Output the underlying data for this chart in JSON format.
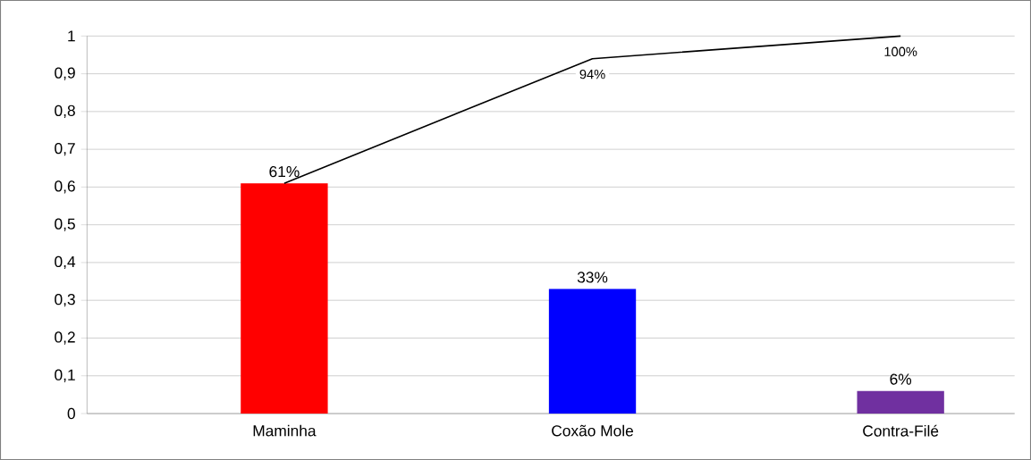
{
  "chart_data": {
    "type": "bar",
    "categories": [
      "Maminha",
      "Coxão Mole",
      "Contra-Filé"
    ],
    "series": [
      {
        "colors": [
          "#ff0000",
          "#0000ff",
          "#7030a0"
        ],
        "values": [
          0.61,
          0.33,
          0.06
        ],
        "value_labels": [
          "61%",
          "33%",
          "6%"
        ]
      },
      {
        "type": "line",
        "color": "#000000",
        "values": [
          0.61,
          0.94,
          1.0
        ],
        "value_labels": [
          null,
          "94%",
          "100%"
        ]
      }
    ],
    "ylim": [
      0,
      1
    ],
    "yticks": [
      {
        "value": 0,
        "label": "0"
      },
      {
        "value": 0.1,
        "label": "0,1"
      },
      {
        "value": 0.2,
        "label": "0,2"
      },
      {
        "value": 0.3,
        "label": "0,3"
      },
      {
        "value": 0.4,
        "label": "0,4"
      },
      {
        "value": 0.5,
        "label": "0,5"
      },
      {
        "value": 0.6,
        "label": "0,6"
      },
      {
        "value": 0.7,
        "label": "0,7"
      },
      {
        "value": 0.8,
        "label": "0,8"
      },
      {
        "value": 0.9,
        "label": "0,9"
      },
      {
        "value": 1,
        "label": "1"
      }
    ],
    "grid": "y"
  }
}
